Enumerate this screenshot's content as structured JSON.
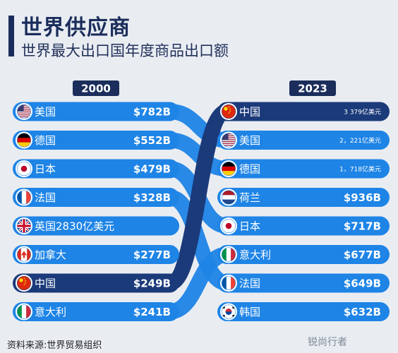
{
  "header": {
    "title": "世界供应商",
    "subtitle": "世界最大出口国年度商品出口额"
  },
  "source": "资料来源:世界贸易组织",
  "watermark": "锐尚行者",
  "colors": {
    "band": "#1e84e6",
    "highlight": "#1b3a7a",
    "year_badge": "#1b2d5b",
    "background": "#e9edf2"
  },
  "chart_data": {
    "type": "slope-ranking",
    "title": "世界最大出口国年度商品出口额",
    "years": [
      "2000",
      "2023"
    ],
    "left": [
      {
        "country": "美国",
        "label": "$782B",
        "value_billion_usd": 782,
        "flag": "us-flag-icon"
      },
      {
        "country": "德国",
        "label": "$552B",
        "value_billion_usd": 552,
        "flag": "germany-flag-icon"
      },
      {
        "country": "日本",
        "label": "$479B",
        "value_billion_usd": 479,
        "flag": "japan-flag-icon"
      },
      {
        "country": "法国",
        "label": "$328B",
        "value_billion_usd": 328,
        "flag": "france-flag-icon"
      },
      {
        "country": "英国2830亿美元",
        "label": "",
        "value_billion_usd": 283,
        "flag": "uk-flag-icon"
      },
      {
        "country": "加拿大",
        "label": "$277B",
        "value_billion_usd": 277,
        "flag": "canada-flag-icon"
      },
      {
        "country": "中国",
        "label": "$249B",
        "value_billion_usd": 249,
        "flag": "china-flag-icon",
        "highlight": true
      },
      {
        "country": "意大利",
        "label": "$241B",
        "value_billion_usd": 241,
        "flag": "italy-flag-icon"
      }
    ],
    "right": [
      {
        "country": "中国",
        "label": "3 379亿美元",
        "value_billion_usd": 337.9,
        "flag": "china-flag-icon",
        "highlight": true,
        "small": true
      },
      {
        "country": "美国",
        "label": "2，221亿美元",
        "value_billion_usd": 222.1,
        "flag": "us-flag-icon",
        "small": true
      },
      {
        "country": "德国",
        "label": "1，718亿美元",
        "value_billion_usd": 171.8,
        "flag": "germany-flag-icon",
        "small": true
      },
      {
        "country": "荷兰",
        "label": "$936B",
        "value_billion_usd": 936,
        "flag": "netherlands-flag-icon"
      },
      {
        "country": "日本",
        "label": "$717B",
        "value_billion_usd": 717,
        "flag": "japan-flag-icon"
      },
      {
        "country": "意大利",
        "label": "$677B",
        "value_billion_usd": 677,
        "flag": "italy-flag-icon"
      },
      {
        "country": "法国",
        "label": "$649B",
        "value_billion_usd": 649,
        "flag": "france-flag-icon"
      },
      {
        "country": "韩国",
        "label": "$632B",
        "value_billion_usd": 632,
        "flag": "korea-flag-icon"
      }
    ],
    "links": [
      {
        "from": 0,
        "to": 1
      },
      {
        "from": 1,
        "to": 2
      },
      {
        "from": 2,
        "to": 4
      },
      {
        "from": 3,
        "to": 6
      },
      {
        "from": 7,
        "to": 5
      },
      {
        "from": 6,
        "to": 0,
        "highlight": true
      }
    ]
  }
}
